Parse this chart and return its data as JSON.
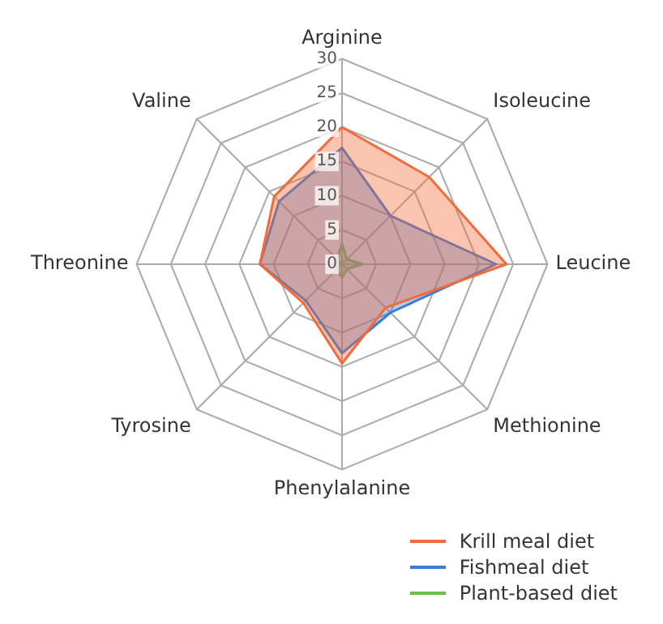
{
  "chart_data": {
    "type": "radar",
    "categories": [
      "Arginine",
      "Isoleucine",
      "Leucine",
      "Methionine",
      "Phenylalanine",
      "Tyrosine",
      "Threonine",
      "Valine"
    ],
    "series": [
      {
        "name": "Krill meal diet",
        "color": "#f26b3a",
        "values": [
          20,
          18,
          24,
          9,
          14.5,
          8,
          12,
          14
        ]
      },
      {
        "name": "Fishmeal diet",
        "color": "#3a7bd5",
        "values": [
          17,
          10,
          22.5,
          10,
          13,
          7.5,
          12,
          13
        ]
      },
      {
        "name": "Plant-based diet",
        "color": "#6cc04a",
        "values": [
          3,
          1,
          3,
          1,
          2,
          1,
          1,
          1
        ]
      }
    ],
    "ylim": [
      0,
      30
    ],
    "yticks": [
      0,
      5,
      10,
      15,
      20,
      25,
      30
    ],
    "grid": true,
    "legend": "bottom right"
  }
}
